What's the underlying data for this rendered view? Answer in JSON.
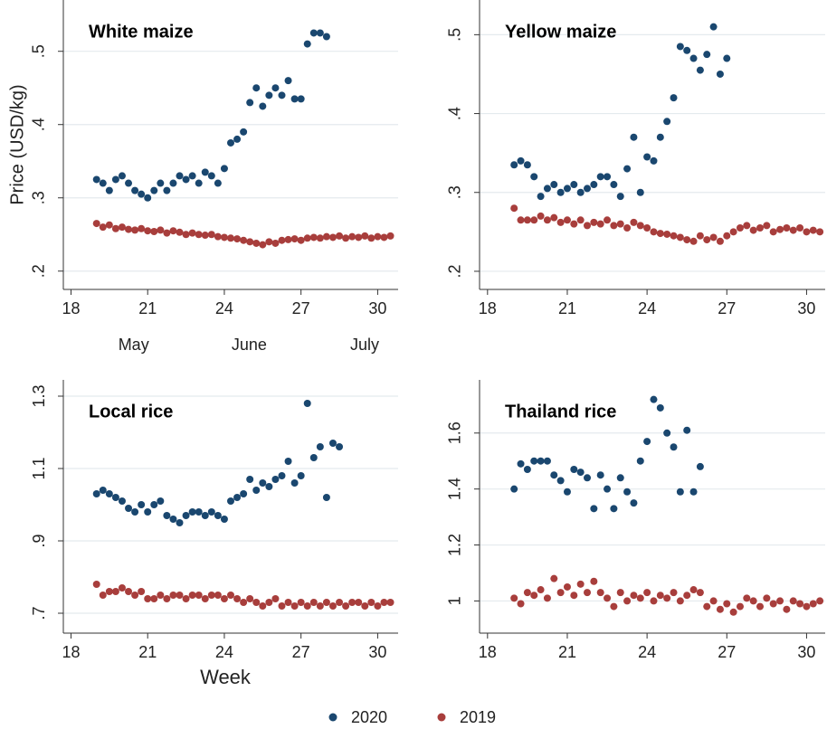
{
  "chart_data": [
    {
      "type": "scatter",
      "title": "White maize",
      "y_label": "Price (USD/kg)",
      "annotations": [
        "May",
        "June",
        "July"
      ],
      "xlim": [
        17.7,
        30.8
      ],
      "xticks": [
        18,
        21,
        24,
        27,
        30
      ],
      "ylim": [
        0.175,
        0.57
      ],
      "yticks": [
        {
          "value": 0.2,
          "label": ".2"
        },
        {
          "value": 0.3,
          "label": ".3"
        },
        {
          "value": 0.4,
          "label": ".4"
        },
        {
          "value": 0.5,
          "label": ".5"
        }
      ],
      "grid": true,
      "series": [
        {
          "name": "2020",
          "color": "#1a476f",
          "x": [
            19.0,
            19.25,
            19.5,
            19.75,
            20.0,
            20.25,
            20.5,
            20.75,
            21.0,
            21.25,
            21.5,
            21.75,
            22.0,
            22.25,
            22.5,
            22.75,
            23.0,
            23.25,
            23.5,
            23.75,
            24.0,
            24.25,
            24.5,
            24.75,
            25.0,
            25.25,
            25.5,
            25.75,
            26.0,
            26.25,
            26.5,
            26.75,
            27.0,
            27.25,
            27.5,
            27.75,
            28.0
          ],
          "values": [
            0.325,
            0.32,
            0.31,
            0.325,
            0.33,
            0.32,
            0.31,
            0.305,
            0.3,
            0.31,
            0.32,
            0.31,
            0.32,
            0.33,
            0.325,
            0.33,
            0.32,
            0.335,
            0.33,
            0.32,
            0.34,
            0.375,
            0.38,
            0.39,
            0.43,
            0.45,
            0.425,
            0.44,
            0.45,
            0.44,
            0.46,
            0.435,
            0.435,
            0.51,
            0.525,
            0.525,
            0.52
          ]
        },
        {
          "name": "2019",
          "color": "#a83e3c",
          "x": [
            19.0,
            19.25,
            19.5,
            19.75,
            20.0,
            20.25,
            20.5,
            20.75,
            21.0,
            21.25,
            21.5,
            21.75,
            22.0,
            22.25,
            22.5,
            22.75,
            23.0,
            23.25,
            23.5,
            23.75,
            24.0,
            24.25,
            24.5,
            24.75,
            25.0,
            25.25,
            25.5,
            25.75,
            26.0,
            26.25,
            26.5,
            26.75,
            27.0,
            27.25,
            27.5,
            27.75,
            28.0,
            28.25,
            28.5,
            28.75,
            29.0,
            29.25,
            29.5,
            29.75,
            30.0,
            30.25,
            30.5
          ],
          "values": [
            0.265,
            0.26,
            0.263,
            0.258,
            0.26,
            0.257,
            0.256,
            0.258,
            0.255,
            0.254,
            0.256,
            0.252,
            0.255,
            0.253,
            0.25,
            0.252,
            0.25,
            0.249,
            0.25,
            0.247,
            0.246,
            0.245,
            0.244,
            0.242,
            0.24,
            0.238,
            0.236,
            0.24,
            0.238,
            0.242,
            0.243,
            0.244,
            0.242,
            0.245,
            0.246,
            0.245,
            0.247,
            0.246,
            0.248,
            0.245,
            0.247,
            0.246,
            0.248,
            0.245,
            0.247,
            0.246,
            0.248
          ]
        }
      ]
    },
    {
      "type": "scatter",
      "title": "Yellow maize",
      "xlim": [
        17.7,
        30.7
      ],
      "xticks": [
        18,
        21,
        24,
        27,
        30
      ],
      "ylim": [
        0.177,
        0.544
      ],
      "yticks": [
        {
          "value": 0.2,
          "label": ".2"
        },
        {
          "value": 0.3,
          "label": ".3"
        },
        {
          "value": 0.4,
          "label": ".4"
        },
        {
          "value": 0.5,
          "label": ".5"
        }
      ],
      "grid": true,
      "series": [
        {
          "name": "2020",
          "color": "#1a476f",
          "x": [
            19.0,
            19.25,
            19.5,
            19.75,
            20.0,
            20.25,
            20.5,
            20.75,
            21.0,
            21.25,
            21.5,
            21.75,
            22.0,
            22.25,
            22.5,
            22.75,
            23.0,
            23.25,
            23.5,
            23.75,
            24.0,
            24.25,
            24.5,
            24.75,
            25.0,
            25.25,
            25.5,
            25.75,
            26.0,
            26.25,
            26.5,
            26.75,
            27.0
          ],
          "values": [
            0.335,
            0.34,
            0.335,
            0.32,
            0.295,
            0.305,
            0.31,
            0.3,
            0.305,
            0.31,
            0.3,
            0.305,
            0.31,
            0.32,
            0.32,
            0.31,
            0.295,
            0.33,
            0.37,
            0.3,
            0.345,
            0.34,
            0.37,
            0.39,
            0.42,
            0.485,
            0.48,
            0.47,
            0.455,
            0.475,
            0.51,
            0.45,
            0.47
          ]
        },
        {
          "name": "2019",
          "color": "#a83e3c",
          "x": [
            19.0,
            19.25,
            19.5,
            19.75,
            20.0,
            20.25,
            20.5,
            20.75,
            21.0,
            21.25,
            21.5,
            21.75,
            22.0,
            22.25,
            22.5,
            22.75,
            23.0,
            23.25,
            23.5,
            23.75,
            24.0,
            24.25,
            24.5,
            24.75,
            25.0,
            25.25,
            25.5,
            25.75,
            26.0,
            26.25,
            26.5,
            26.75,
            27.0,
            27.25,
            27.5,
            27.75,
            28.0,
            28.25,
            28.5,
            28.75,
            29.0,
            29.25,
            29.5,
            29.75,
            30.0,
            30.25,
            30.5
          ],
          "values": [
            0.28,
            0.265,
            0.265,
            0.265,
            0.27,
            0.265,
            0.268,
            0.262,
            0.265,
            0.26,
            0.265,
            0.258,
            0.262,
            0.26,
            0.265,
            0.258,
            0.26,
            0.255,
            0.262,
            0.258,
            0.255,
            0.25,
            0.248,
            0.247,
            0.245,
            0.243,
            0.24,
            0.238,
            0.245,
            0.24,
            0.243,
            0.238,
            0.245,
            0.25,
            0.255,
            0.258,
            0.252,
            0.255,
            0.258,
            0.25,
            0.253,
            0.255,
            0.252,
            0.255,
            0.25,
            0.252,
            0.25
          ]
        }
      ]
    },
    {
      "type": "scatter",
      "title": "Local rice",
      "x_label": "Week",
      "xlim": [
        17.7,
        30.8
      ],
      "xticks": [
        18,
        21,
        24,
        27,
        30
      ],
      "ylim": [
        0.645,
        1.345
      ],
      "yticks": [
        {
          "value": 0.7,
          "label": ".7"
        },
        {
          "value": 0.9,
          "label": ".9"
        },
        1.1,
        1.3
      ],
      "grid": true,
      "series": [
        {
          "name": "2020",
          "color": "#1a476f",
          "x": [
            19.0,
            19.25,
            19.5,
            19.75,
            20.0,
            20.25,
            20.5,
            20.75,
            21.0,
            21.25,
            21.5,
            21.75,
            22.0,
            22.25,
            22.5,
            22.75,
            23.0,
            23.25,
            23.5,
            23.75,
            24.0,
            24.25,
            24.5,
            24.75,
            25.0,
            25.25,
            25.5,
            25.75,
            26.0,
            26.25,
            26.5,
            26.75,
            27.0,
            27.25,
            27.5,
            27.75,
            28.0,
            28.25,
            28.5
          ],
          "values": [
            1.03,
            1.04,
            1.03,
            1.02,
            1.01,
            0.99,
            0.98,
            1.0,
            0.98,
            1.0,
            1.01,
            0.97,
            0.96,
            0.95,
            0.97,
            0.98,
            0.98,
            0.97,
            0.98,
            0.97,
            0.96,
            1.01,
            1.02,
            1.03,
            1.07,
            1.04,
            1.06,
            1.05,
            1.07,
            1.08,
            1.12,
            1.06,
            1.08,
            1.28,
            1.13,
            1.16,
            1.02,
            1.17,
            1.16
          ]
        },
        {
          "name": "2019",
          "color": "#a83e3c",
          "x": [
            19.0,
            19.25,
            19.5,
            19.75,
            20.0,
            20.25,
            20.5,
            20.75,
            21.0,
            21.25,
            21.5,
            21.75,
            22.0,
            22.25,
            22.5,
            22.75,
            23.0,
            23.25,
            23.5,
            23.75,
            24.0,
            24.25,
            24.5,
            24.75,
            25.0,
            25.25,
            25.5,
            25.75,
            26.0,
            26.25,
            26.5,
            26.75,
            27.0,
            27.25,
            27.5,
            27.75,
            28.0,
            28.25,
            28.5,
            28.75,
            29.0,
            29.25,
            29.5,
            29.75,
            30.0,
            30.25,
            30.5
          ],
          "values": [
            0.78,
            0.75,
            0.76,
            0.76,
            0.77,
            0.76,
            0.75,
            0.76,
            0.74,
            0.74,
            0.75,
            0.74,
            0.75,
            0.75,
            0.74,
            0.75,
            0.75,
            0.74,
            0.75,
            0.75,
            0.74,
            0.75,
            0.74,
            0.73,
            0.74,
            0.73,
            0.72,
            0.73,
            0.74,
            0.72,
            0.73,
            0.72,
            0.73,
            0.72,
            0.73,
            0.72,
            0.73,
            0.72,
            0.73,
            0.72,
            0.73,
            0.73,
            0.72,
            0.73,
            0.72,
            0.73,
            0.73
          ]
        }
      ]
    },
    {
      "type": "scatter",
      "title": "Thailand rice",
      "xlim": [
        17.7,
        30.7
      ],
      "xticks": [
        18,
        21,
        24,
        27,
        30
      ],
      "ylim": [
        0.885,
        1.79
      ],
      "yticks": [
        1,
        1.2,
        1.4,
        1.6
      ],
      "grid": true,
      "series": [
        {
          "name": "2020",
          "color": "#1a476f",
          "x": [
            19.0,
            19.25,
            19.5,
            19.75,
            20.0,
            20.25,
            20.5,
            20.75,
            21.0,
            21.25,
            21.5,
            21.75,
            22.0,
            22.25,
            22.5,
            22.75,
            23.0,
            23.25,
            23.5,
            23.75,
            24.0,
            24.25,
            24.5,
            24.75,
            25.0,
            25.25,
            25.5,
            25.75,
            26.0
          ],
          "values": [
            1.4,
            1.49,
            1.47,
            1.5,
            1.5,
            1.5,
            1.45,
            1.43,
            1.39,
            1.47,
            1.46,
            1.44,
            1.33,
            1.45,
            1.4,
            1.33,
            1.44,
            1.39,
            1.35,
            1.5,
            1.57,
            1.72,
            1.69,
            1.6,
            1.55,
            1.39,
            1.61,
            1.39,
            1.48
          ]
        },
        {
          "name": "2019",
          "color": "#a83e3c",
          "x": [
            19.0,
            19.25,
            19.5,
            19.75,
            20.0,
            20.25,
            20.5,
            20.75,
            21.0,
            21.25,
            21.5,
            21.75,
            22.0,
            22.25,
            22.5,
            22.75,
            23.0,
            23.25,
            23.5,
            23.75,
            24.0,
            24.25,
            24.5,
            24.75,
            25.0,
            25.25,
            25.5,
            25.75,
            26.0,
            26.25,
            26.5,
            26.75,
            27.0,
            27.25,
            27.5,
            27.75,
            28.0,
            28.25,
            28.5,
            28.75,
            29.0,
            29.25,
            29.5,
            29.75,
            30.0,
            30.25,
            30.5
          ],
          "values": [
            1.01,
            0.99,
            1.03,
            1.02,
            1.04,
            1.01,
            1.08,
            1.03,
            1.05,
            1.02,
            1.06,
            1.03,
            1.07,
            1.03,
            1.01,
            0.98,
            1.03,
            1.0,
            1.02,
            1.01,
            1.03,
            1.0,
            1.02,
            1.01,
            1.03,
            1.0,
            1.02,
            1.04,
            1.03,
            0.98,
            1.0,
            0.97,
            0.99,
            0.96,
            0.98,
            1.01,
            1.0,
            0.98,
            1.01,
            0.99,
            1.0,
            0.97,
            1.0,
            0.99,
            0.98,
            0.99,
            1.0
          ]
        }
      ]
    }
  ]
}
